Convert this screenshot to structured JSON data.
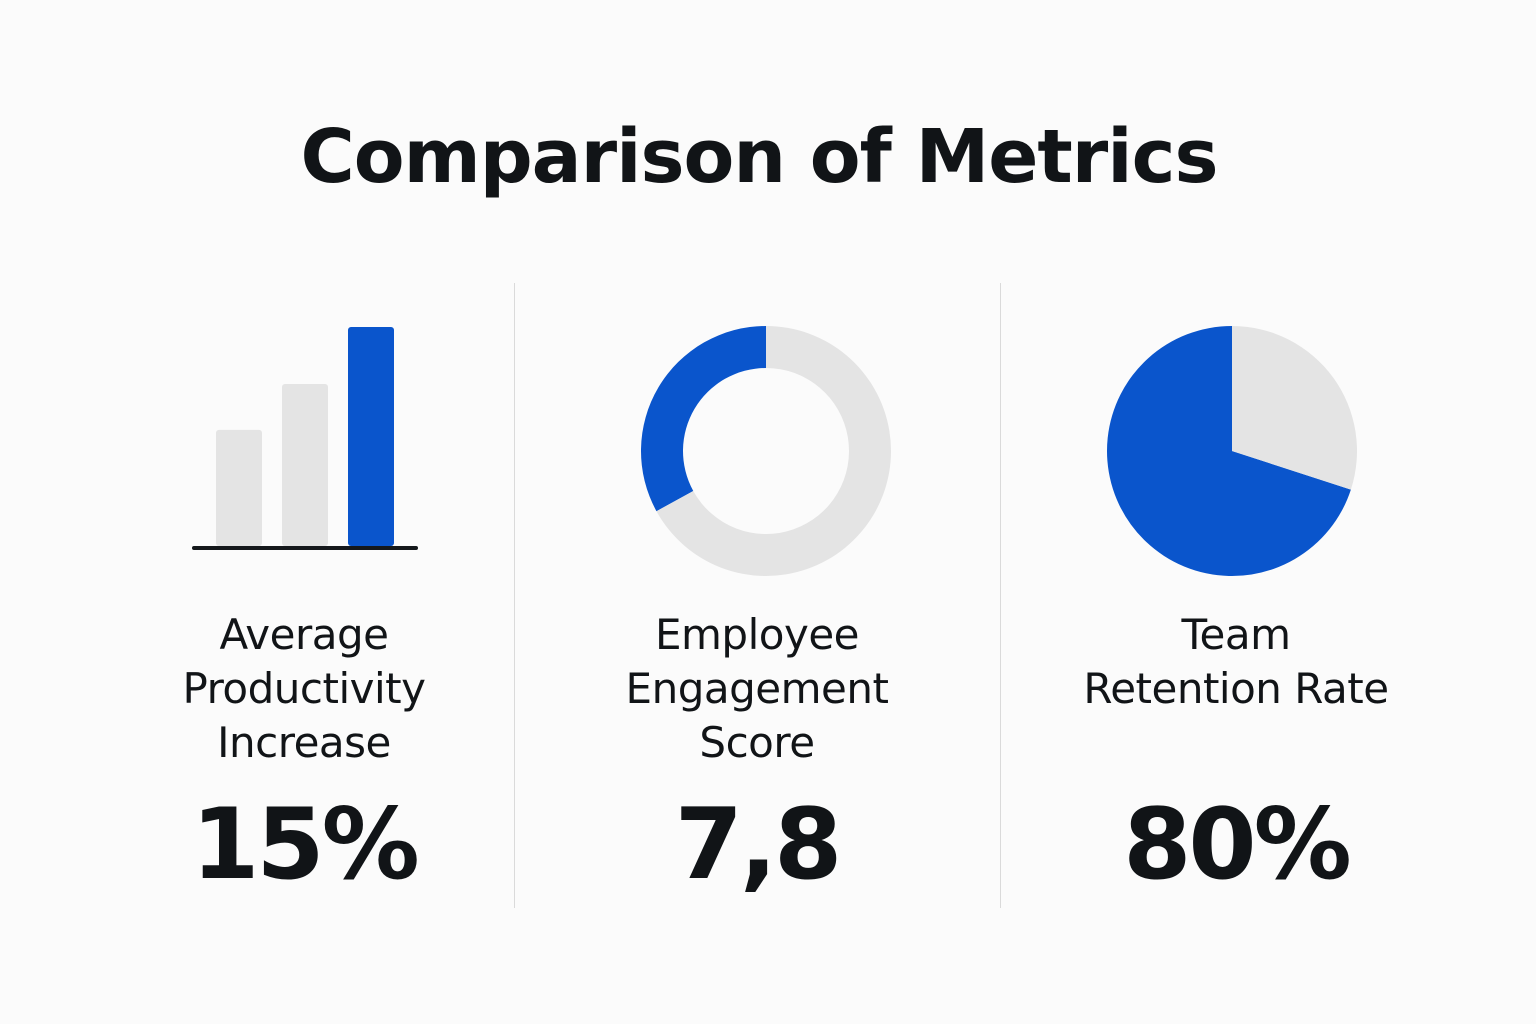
{
  "title": "Comparison of Metrics",
  "colors": {
    "accent": "#0a55cc",
    "muted": "#e4e4e4",
    "baseline": "#15181b",
    "text": "#111417",
    "divider": "#dadada"
  },
  "metrics": [
    {
      "label": "Average\nProductivity\nIncrease",
      "value": "15%"
    },
    {
      "label": "Employee\nEngagement\nScore",
      "value": "7,8"
    },
    {
      "label": "Team\nRetention Rate",
      "value": "80%"
    }
  ],
  "chart_data": [
    {
      "type": "bar",
      "categories": [
        "",
        "",
        ""
      ],
      "values": [
        53,
        74,
        100
      ],
      "highlight_index": 2,
      "ylim": [
        0,
        100
      ],
      "grid": false
    },
    {
      "type": "pie",
      "style": "donut",
      "slices": [
        {
          "value": 33,
          "color": "#0a55cc"
        },
        {
          "value": 67,
          "color": "#e4e4e4"
        }
      ]
    },
    {
      "type": "pie",
      "slices": [
        {
          "value": 70,
          "color": "#0a55cc"
        },
        {
          "value": 30,
          "color": "#e4e4e4"
        }
      ]
    }
  ]
}
